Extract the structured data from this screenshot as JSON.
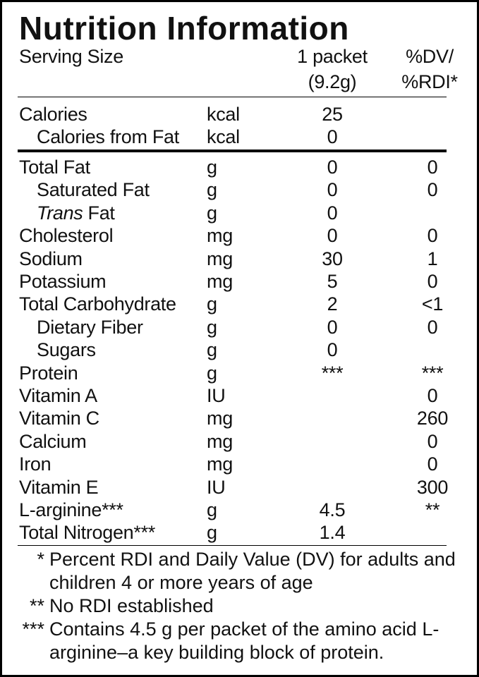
{
  "title": "Nutrition Information",
  "header": {
    "serving_label": "Serving Size",
    "serving_amount": [
      "1 packet",
      "(9.2g)"
    ],
    "dv_label": [
      "%DV/",
      "%RDI*"
    ]
  },
  "calorie_rows": [
    [
      "Calories",
      "kcal",
      "25"
    ],
    [
      "Calories from Fat",
      "kcal",
      "0"
    ]
  ],
  "rows": [
    [
      "Total Fat",
      "g",
      "0",
      "0"
    ],
    [
      "Saturated Fat",
      "g",
      "0",
      "0"
    ],
    [
      {
        "italic": "Trans",
        "text": "Fat"
      },
      "g",
      "0",
      null
    ],
    [
      "Cholesterol",
      "mg",
      "0",
      "0"
    ],
    [
      "Sodium",
      "mg",
      "30",
      "1"
    ],
    [
      "Potassium",
      "mg",
      "5",
      "0"
    ],
    [
      "Total Carbohydrate",
      "g",
      "2",
      "<1"
    ],
    [
      "Dietary Fiber",
      "g",
      "0",
      "0"
    ],
    [
      "Sugars",
      "g",
      "0",
      null
    ],
    [
      "Protein",
      "g",
      "***",
      "***"
    ],
    [
      "Vitamin A",
      "IU",
      null,
      "0"
    ],
    [
      "Vitamin C",
      "mg",
      null,
      "260"
    ],
    [
      "Calcium",
      "mg",
      null,
      "0"
    ],
    [
      "Iron",
      "mg",
      null,
      "0"
    ],
    [
      "Vitamin E",
      "IU",
      null,
      "300"
    ],
    [
      "L-arginine***",
      "g",
      "4.5",
      "**"
    ],
    [
      "Total Nitrogen***",
      "g",
      "1.4",
      null
    ]
  ],
  "footnotes": [
    [
      "*",
      "Percent RDI and Daily Value (DV) for adults and children 4 or more years of age"
    ],
    [
      "**",
      "No RDI established"
    ],
    [
      "***",
      "Contains 4.5 g per packet of the amino acid L-arginine–a key building block of protein."
    ]
  ]
}
